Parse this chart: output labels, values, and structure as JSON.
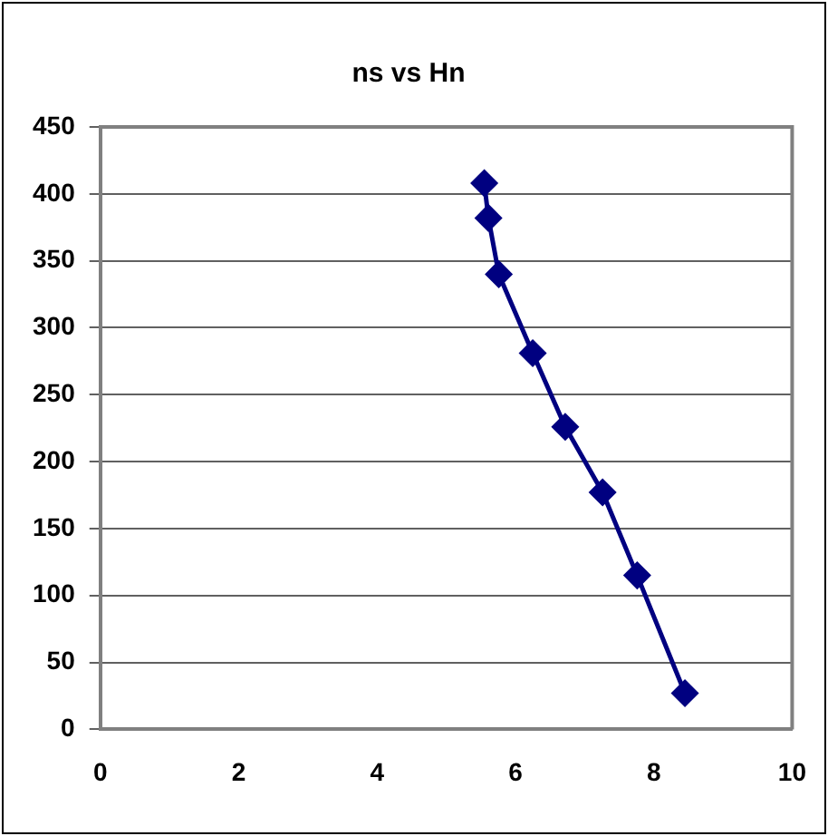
{
  "chart_data": {
    "type": "line",
    "title": "ns vs Hn",
    "x": [
      5.55,
      5.61,
      5.76,
      6.25,
      6.72,
      7.26,
      7.76,
      8.45
    ],
    "series": [
      {
        "color": "#000080",
        "values": [
          408,
          382,
          340,
          281,
          226,
          177,
          115,
          27
        ]
      }
    ],
    "xlim": [
      0,
      10
    ],
    "xticks": [
      0,
      2,
      4,
      6,
      8,
      10
    ],
    "ylim": [
      0,
      450
    ],
    "yticks": [
      0,
      50,
      100,
      150,
      200,
      250,
      300,
      350,
      400,
      450
    ],
    "grid": "y",
    "legend": false,
    "marker": "diamond",
    "line_style": "solid"
  }
}
